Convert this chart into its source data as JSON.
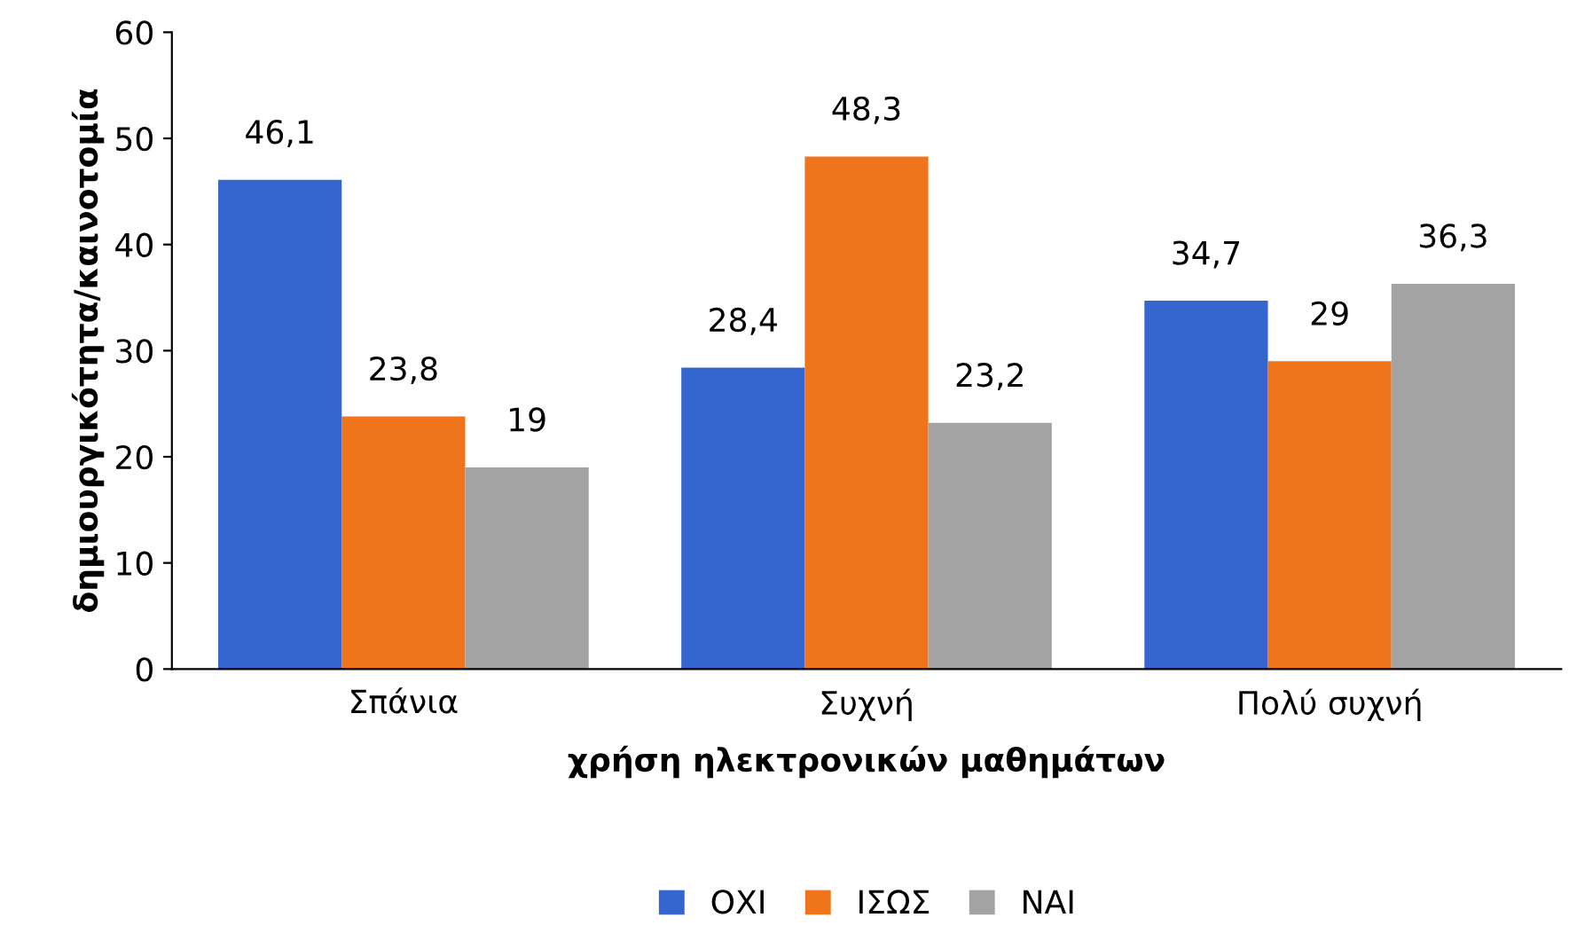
{
  "chart_data": {
    "type": "bar",
    "xlabel": "χρήση ηλεκτρονικών μαθημάτων",
    "ylabel": "δημιουργικότητα/καινοτομία",
    "categories": [
      "Σπάνια",
      "Συχνή",
      "Πολύ συχνή"
    ],
    "series": [
      {
        "name": "ΟΧΙ",
        "color": "#3566d0",
        "values": [
          46.1,
          28.4,
          34.7
        ],
        "value_labels": [
          "46,1",
          "28,4",
          "34,7"
        ]
      },
      {
        "name": "ΙΣΩΣ",
        "color": "#f0741c",
        "values": [
          23.8,
          48.3,
          29
        ],
        "value_labels": [
          "23,8",
          "48,3",
          "29"
        ]
      },
      {
        "name": "ΝΑΙ",
        "color": "#a3a3a3",
        "values": [
          19,
          23.2,
          36.3
        ],
        "value_labels": [
          "19",
          "23,2",
          "36,3"
        ]
      }
    ],
    "ylim": [
      0,
      60
    ],
    "yticks": [
      0,
      10,
      20,
      30,
      40,
      50,
      60
    ],
    "grid": false,
    "legend": "bottom"
  }
}
